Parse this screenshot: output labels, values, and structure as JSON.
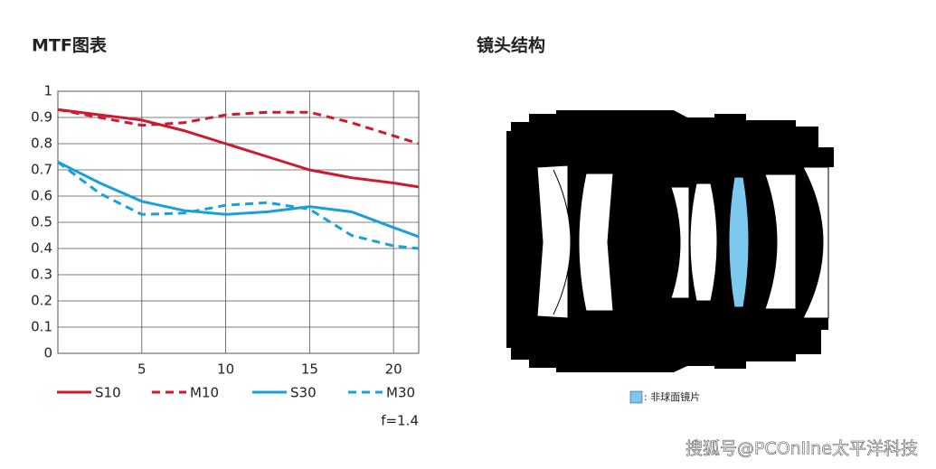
{
  "chart_data": {
    "type": "line",
    "title": "MTF图表",
    "note": "f=1.4",
    "x": [
      0,
      2.5,
      5,
      7.5,
      10,
      12.5,
      15,
      17.5,
      20,
      21.5
    ],
    "series": [
      {
        "name": "S10",
        "color": "#cc1a2e",
        "dashed": false,
        "values": [
          0.93,
          0.91,
          0.89,
          0.85,
          0.8,
          0.75,
          0.7,
          0.67,
          0.65,
          0.635
        ]
      },
      {
        "name": "M10",
        "color": "#cc1a2e",
        "dashed": true,
        "values": [
          0.93,
          0.9,
          0.87,
          0.88,
          0.91,
          0.92,
          0.92,
          0.88,
          0.83,
          0.8
        ]
      },
      {
        "name": "S30",
        "color": "#1aa0d8",
        "dashed": false,
        "values": [
          0.73,
          0.65,
          0.58,
          0.545,
          0.53,
          0.54,
          0.56,
          0.54,
          0.48,
          0.445
        ]
      },
      {
        "name": "M30",
        "color": "#1aa0d8",
        "dashed": true,
        "values": [
          0.73,
          0.61,
          0.53,
          0.535,
          0.565,
          0.575,
          0.55,
          0.45,
          0.41,
          0.4
        ]
      }
    ],
    "xlim": [
      0,
      21.5
    ],
    "xticks": [
      5,
      10,
      15,
      20
    ],
    "ylim": [
      0,
      1
    ],
    "yticks": [
      0,
      0.1,
      0.2,
      0.3,
      0.4,
      0.5,
      0.6,
      0.7,
      0.8,
      0.9,
      1
    ],
    "grid": true
  },
  "lens": {
    "title": "镜头结构",
    "legend_label": ": 非球面镜片",
    "aspheric_color": "#7cc8ee"
  },
  "watermark": "搜狐号@PCOnline太平洋科技"
}
